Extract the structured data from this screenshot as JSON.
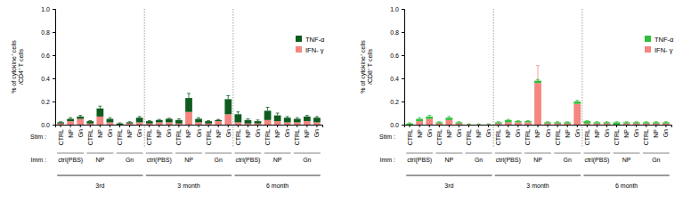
{
  "chart_data": [
    {
      "type": "bar",
      "stacked": true,
      "y_label": "% of cytokine⁺ cells /CD4⁺ T cells",
      "stim_label": "Stim :",
      "imm_label": "Imm :",
      "categories": [
        "CTRL",
        "NP",
        "Gn",
        "CTRL",
        "NP",
        "Gn",
        "CTRL",
        "NP",
        "Gn",
        "CTRL",
        "NP",
        "Gn",
        "CTRL",
        "NP",
        "Gn",
        "CTRL",
        "NP",
        "Gn",
        "CTRL",
        "NP",
        "Gn",
        "CTRL",
        "NP",
        "Gn",
        "CTRL",
        "NP",
        "Gn"
      ],
      "imm_groups": [
        "ctrl(PBS)",
        "NP",
        "Gn",
        "ctrl(PBS)",
        "NP",
        "Gn",
        "ctrl(PBS)",
        "NP",
        "Gn"
      ],
      "time_groups": [
        "3rd",
        "3 month",
        "6 month"
      ],
      "ylim": [
        0,
        1.0
      ],
      "yticks": [
        {
          "value": 0,
          "label": "0.0"
        },
        0.2,
        0.4,
        0.6,
        0.8,
        {
          "value": 1.0,
          "label": "1.0"
        }
      ],
      "legend": "upper right",
      "series": [
        {
          "name": "IFN- γ",
          "color": "#f4857f",
          "values": [
            0.01,
            0.03,
            0.05,
            0.01,
            0.07,
            0.02,
            0.0,
            0.01,
            0.02,
            0.01,
            0.02,
            0.02,
            0.01,
            0.11,
            0.02,
            0.01,
            0.03,
            0.09,
            0.02,
            0.01,
            0.01,
            0.04,
            0.03,
            0.02,
            0.02,
            0.03,
            0.02
          ],
          "errors": [
            0.005,
            0.01,
            0.01,
            0.005,
            0.02,
            0.005,
            0.005,
            0.005,
            0.005,
            0.005,
            0.005,
            0.005,
            0.005,
            0.03,
            0.005,
            0.005,
            0.01,
            0.02,
            0.005,
            0.005,
            0.005,
            0.01,
            0.01,
            0.005,
            0.005,
            0.01,
            0.005
          ]
        },
        {
          "name": "TNF-α",
          "color": "#0d5c1e",
          "values": [
            0.01,
            0.02,
            0.02,
            0.02,
            0.07,
            0.03,
            0.01,
            0.01,
            0.04,
            0.02,
            0.02,
            0.03,
            0.03,
            0.12,
            0.03,
            0.02,
            0.01,
            0.13,
            0.07,
            0.03,
            0.02,
            0.08,
            0.05,
            0.04,
            0.03,
            0.04,
            0.04
          ],
          "errors": [
            0.005,
            0.01,
            0.01,
            0.005,
            0.02,
            0.01,
            0.005,
            0.005,
            0.01,
            0.005,
            0.005,
            0.005,
            0.01,
            0.04,
            0.01,
            0.005,
            0.005,
            0.03,
            0.02,
            0.01,
            0.01,
            0.03,
            0.02,
            0.01,
            0.01,
            0.01,
            0.01
          ]
        }
      ]
    },
    {
      "type": "bar",
      "stacked": true,
      "y_label": "% of cytokine⁺ cells /CD8⁺ T cells",
      "stim_label": "Stim :",
      "imm_label": "Imm :",
      "categories": [
        "CTRL",
        "NP",
        "Gn",
        "CTRL",
        "NP",
        "Gn",
        "CTRL",
        "NP",
        "Gn",
        "CTRL",
        "NP",
        "Gn",
        "CTRL",
        "NP",
        "Gn",
        "CTRL",
        "NP",
        "Gn",
        "CTRL",
        "NP",
        "Gn",
        "CTRL",
        "NP",
        "Gn",
        "CTRL",
        "NP",
        "Gn"
      ],
      "imm_groups": [
        "ctrl(PBS)",
        "NP",
        "Gn",
        "ctrl(PBS)",
        "NP",
        "Gn",
        "ctrl(PBS)",
        "NP",
        "Gn"
      ],
      "time_groups": [
        "3rd",
        "3 month",
        "6 month"
      ],
      "ylim": [
        0,
        1.0
      ],
      "yticks": [
        {
          "value": 0,
          "label": "0.0"
        },
        0.2,
        0.4,
        0.6,
        0.8,
        {
          "value": 1.0,
          "label": "1.0"
        }
      ],
      "legend": "upper right",
      "series": [
        {
          "name": "IFN- γ",
          "color": "#f4857f",
          "values": [
            0.0,
            0.03,
            0.05,
            0.01,
            0.04,
            0.01,
            0.0,
            0.0,
            0.0,
            0.01,
            0.02,
            0.02,
            0.02,
            0.36,
            0.01,
            0.01,
            0.01,
            0.18,
            0.01,
            0.01,
            0.01,
            0.0,
            0.01,
            0.01,
            0.01,
            0.01,
            0.01
          ],
          "errors": [
            0.005,
            0.01,
            0.01,
            0.005,
            0.01,
            0.005,
            0.005,
            0.005,
            0.005,
            0.005,
            0.005,
            0.005,
            0.005,
            0.15,
            0.005,
            0.005,
            0.005,
            0.01,
            0.005,
            0.005,
            0.005,
            0.005,
            0.005,
            0.005,
            0.005,
            0.005,
            0.005
          ]
        },
        {
          "name": "TNF-α",
          "color": "#2fbf3a",
          "values": [
            0.01,
            0.02,
            0.02,
            0.01,
            0.02,
            0.01,
            0.0,
            0.0,
            0.0,
            0.01,
            0.02,
            0.01,
            0.01,
            0.02,
            0.01,
            0.01,
            0.01,
            0.02,
            0.02,
            0.01,
            0.01,
            0.02,
            0.01,
            0.01,
            0.01,
            0.01,
            0.01
          ],
          "errors": [
            0.005,
            0.01,
            0.01,
            0.005,
            0.01,
            0.005,
            0.005,
            0.005,
            0.005,
            0.005,
            0.005,
            0.005,
            0.005,
            0.01,
            0.005,
            0.005,
            0.005,
            0.01,
            0.005,
            0.005,
            0.005,
            0.005,
            0.005,
            0.005,
            0.005,
            0.005,
            0.005
          ]
        }
      ]
    }
  ]
}
